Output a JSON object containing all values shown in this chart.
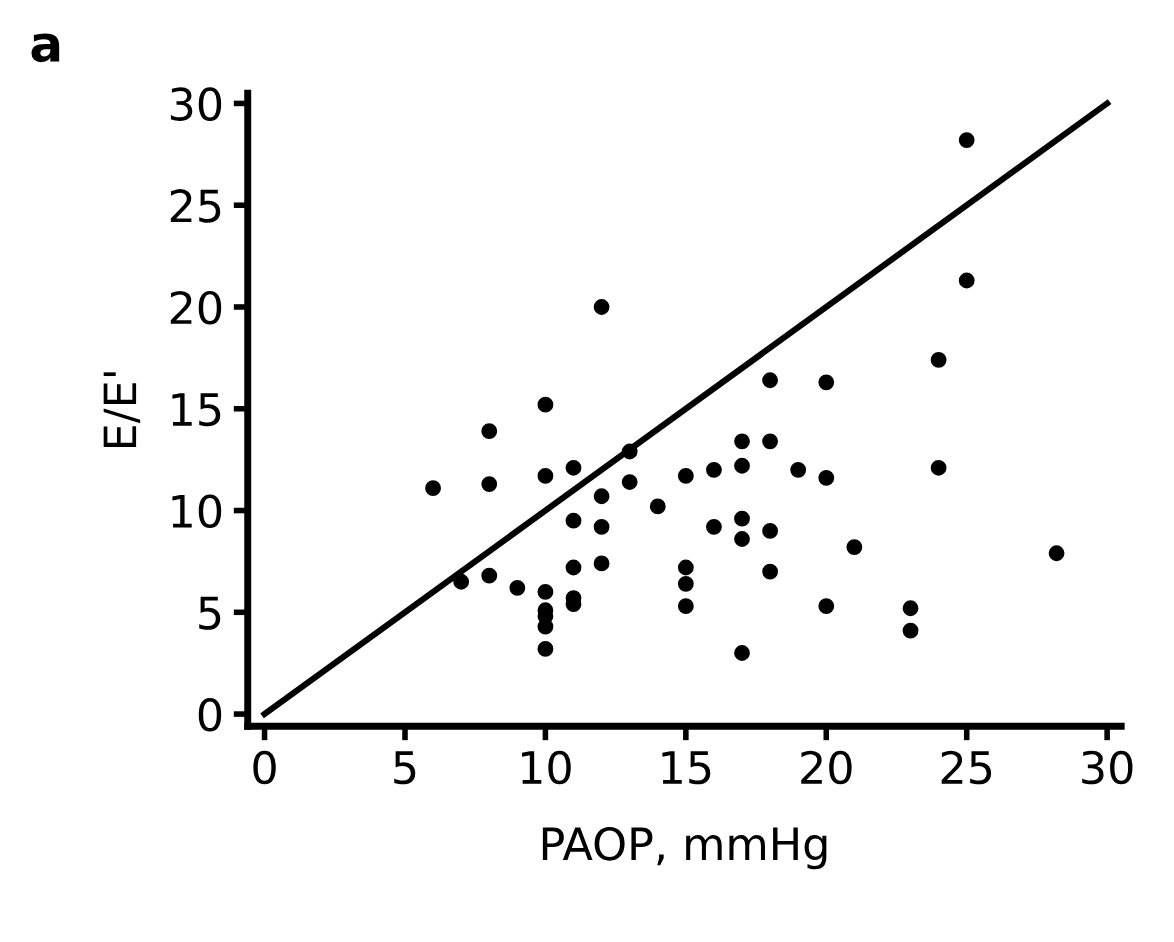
{
  "chart_data": {
    "type": "scatter",
    "title": "a",
    "xlabel": "PAOP, mmHg",
    "ylabel": "E/E'",
    "xlim": [
      -0.6,
      30.5
    ],
    "ylim": [
      -0.6,
      30.5
    ],
    "xticks": [
      0,
      5,
      10,
      15,
      20,
      25,
      30
    ],
    "yticks": [
      0,
      5,
      10,
      15,
      20,
      25,
      30
    ],
    "grid": false,
    "marker": "circle",
    "series": [
      {
        "color": "#000000",
        "x": [
          6,
          8,
          8,
          7,
          8,
          9,
          10,
          10,
          10,
          10,
          10,
          10,
          10,
          11,
          11,
          11,
          11,
          11,
          12,
          12,
          12,
          12,
          13,
          13,
          14,
          15,
          15,
          15,
          15,
          16,
          16,
          17,
          17,
          17,
          17,
          17,
          18,
          18,
          18,
          18,
          19,
          20,
          20,
          20,
          21,
          23,
          23,
          24,
          24,
          25,
          25,
          28.2
        ],
        "values": [
          11.1,
          13.9,
          11.3,
          6.5,
          6.8,
          6.2,
          15.2,
          11.7,
          6.0,
          5.1,
          4.8,
          4.3,
          3.2,
          12.1,
          9.5,
          7.2,
          5.7,
          5.4,
          20.0,
          10.7,
          9.2,
          7.4,
          12.9,
          11.4,
          10.2,
          11.7,
          7.2,
          6.4,
          5.3,
          12.0,
          9.2,
          13.4,
          12.2,
          9.6,
          8.6,
          3.0,
          16.4,
          13.4,
          9.0,
          7.0,
          12.0,
          16.3,
          11.6,
          5.3,
          8.2,
          5.2,
          4.1,
          17.4,
          12.1,
          28.2,
          21.3,
          7.9
        ]
      },
      {
        "type": "line",
        "color": "#000000",
        "marker": "none",
        "line_style": "solid",
        "x": [
          0,
          30
        ],
        "values": [
          0,
          30
        ]
      }
    ]
  }
}
